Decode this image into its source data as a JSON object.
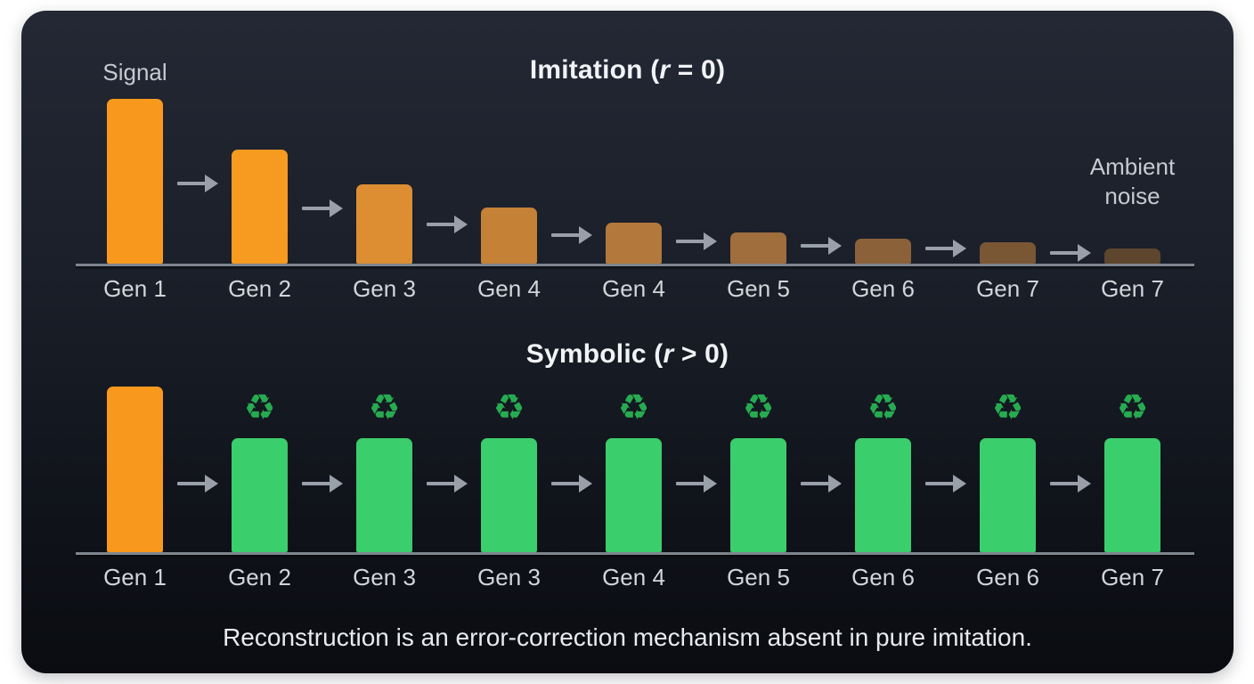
{
  "caption": "Reconstruction is an error-correction mechanism absent in pure imitation.",
  "icons": {
    "recycle_glyph": "♻",
    "arrow_direction": "right"
  },
  "colors": {
    "page_background": "#ffffff",
    "panel_top": "#232834",
    "panel_bottom": "#0a0c11",
    "signal_orange": "#f8991d",
    "reconstructed_green": "#3bce6c",
    "recycle_icon_green": "#27ab51",
    "arrow_gray": "#99a0a9",
    "baseline_gray": "#7e858e",
    "label_gray": "#d2d5da",
    "title_white": "#f1f3f6"
  },
  "chart_data": [
    {
      "type": "bar",
      "row": "imitation",
      "title": {
        "text_before_var": "Imitation (",
        "variable": "r",
        "text_after_var": " = 0)"
      },
      "annotation_start": "Signal",
      "annotation_end_lines": [
        "Ambient",
        "noise"
      ],
      "categories": [
        "Gen 1",
        "Gen 2",
        "Gen 3",
        "Gen 4",
        "Gen 4",
        "Gen 5",
        "Gen 6",
        "Gen 7",
        "Gen 7"
      ],
      "relative_signal": [
        1.0,
        0.69,
        0.48,
        0.34,
        0.25,
        0.19,
        0.15,
        0.13,
        0.09
      ],
      "bar_colors": [
        "#f8991d",
        "#f69a20",
        "#dd8e33",
        "#c58136",
        "#b3783c",
        "#a06d3d",
        "#8b613a",
        "#795634",
        "#5e452d"
      ],
      "arrows_between_bars": true,
      "ylabel": "",
      "xlabel": "",
      "grid": false,
      "axis_shown": "baseline-only"
    },
    {
      "type": "bar",
      "row": "symbolic",
      "title": {
        "text_before_var": "Symbolic (",
        "variable": "r",
        "text_after_var": " > 0)"
      },
      "categories": [
        "Gen 1",
        "Gen 2",
        "Gen 3",
        "Gen 3",
        "Gen 4",
        "Gen 5",
        "Gen 6",
        "Gen 6",
        "Gen 7"
      ],
      "relative_signal": [
        1.45,
        1.0,
        1.0,
        1.0,
        1.0,
        1.0,
        1.0,
        1.0,
        1.0
      ],
      "bar_colors": [
        "#f8991d",
        "#3bce6c",
        "#3bce6c",
        "#3bce6c",
        "#3bce6c",
        "#3bce6c",
        "#3bce6c",
        "#3bce6c",
        "#3bce6c"
      ],
      "recycle_icons": [
        false,
        true,
        true,
        true,
        true,
        true,
        true,
        true,
        true
      ],
      "arrows_between_bars": true,
      "ylabel": "",
      "xlabel": "",
      "grid": false,
      "axis_shown": "baseline-only"
    }
  ]
}
